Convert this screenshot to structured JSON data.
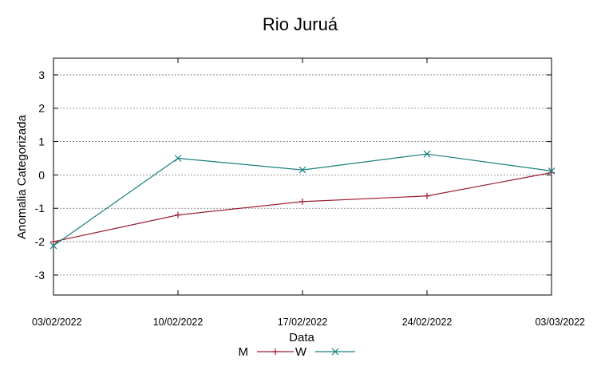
{
  "chart_data": {
    "type": "line",
    "title": "Rio Juruá",
    "xlabel": "Data",
    "ylabel": "Anomalia Categorizada",
    "categories": [
      "03/02/2022",
      "10/02/2022",
      "17/02/2022",
      "24/02/2022",
      "03/03/2022"
    ],
    "ylim": [
      -3.6,
      3.5
    ],
    "yticks": [
      "3",
      "2",
      "1",
      "0",
      "-1",
      "-2",
      "-3"
    ],
    "grid": "horizontal dotted",
    "legend_position": "bottom",
    "series": [
      {
        "name": "M",
        "color": "#9b1b30",
        "marker": "plus",
        "values": [
          -2.0,
          -1.2,
          -0.8,
          -0.63,
          0.07
        ]
      },
      {
        "name": "W",
        "color": "#1a7f7f",
        "marker": "x",
        "values": [
          -2.12,
          0.5,
          0.15,
          0.63,
          0.12
        ]
      }
    ]
  }
}
